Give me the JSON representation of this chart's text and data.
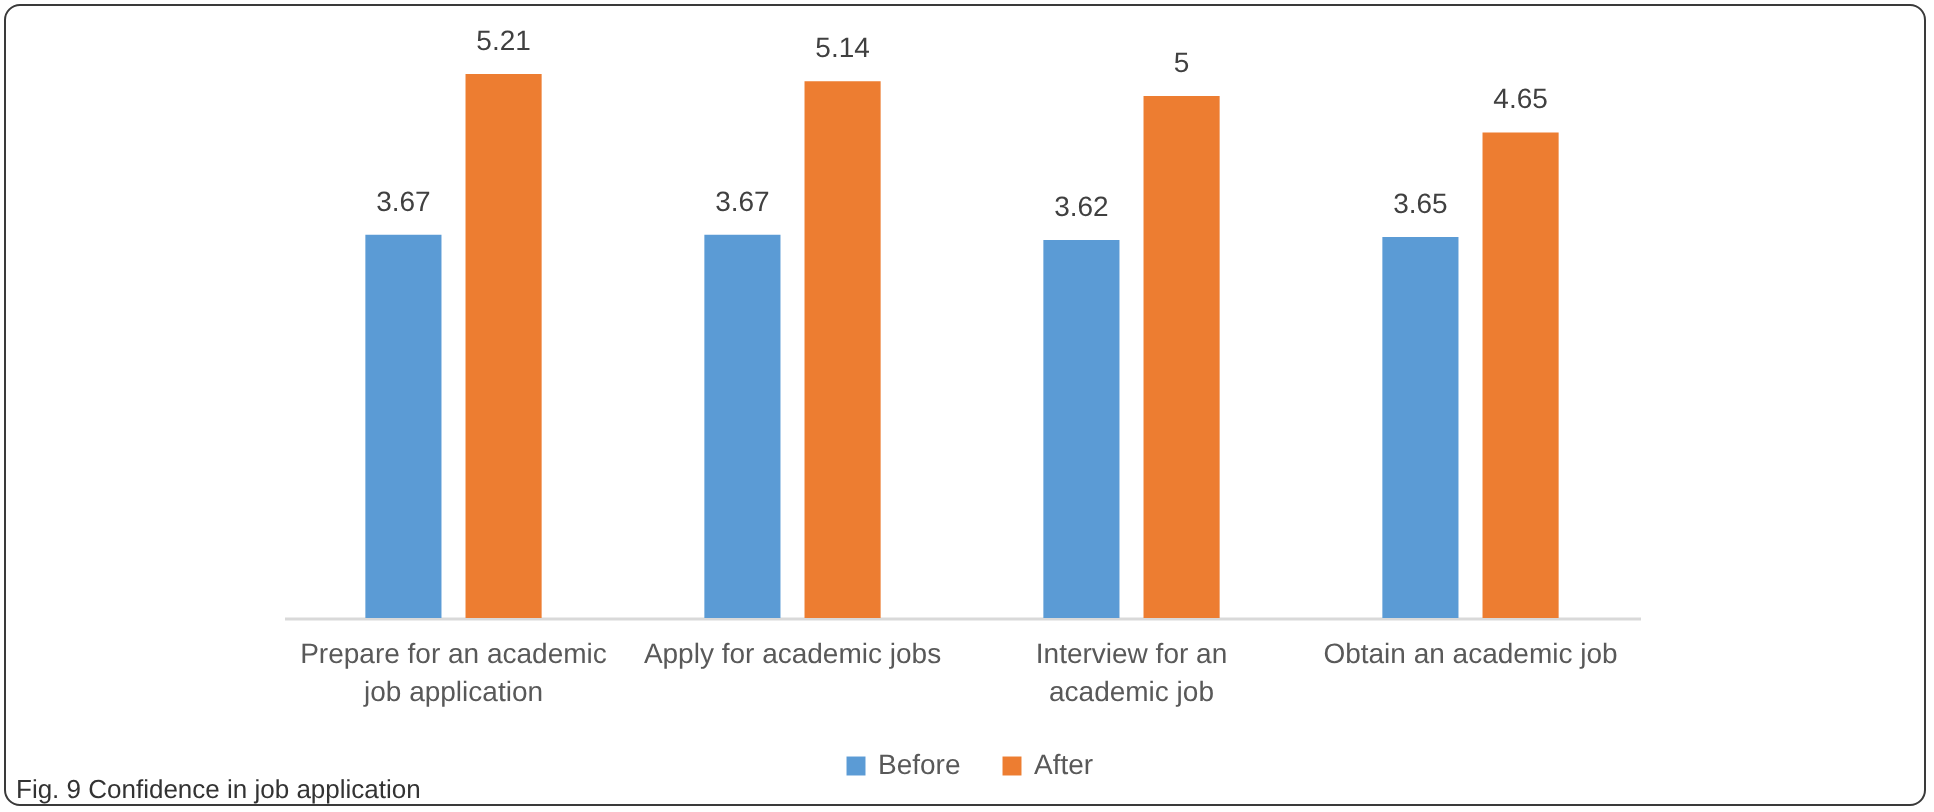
{
  "chart_data": {
    "type": "bar",
    "categories": [
      "Prepare for an academic job application",
      "Apply for academic jobs",
      "Interview for an academic job",
      "Obtain an academic job"
    ],
    "series": [
      {
        "name": "Before",
        "color": "#5b9bd5",
        "values": [
          3.67,
          3.67,
          3.62,
          3.65
        ]
      },
      {
        "name": "After",
        "color": "#ed7d31",
        "values": [
          5.21,
          5.14,
          5,
          4.65
        ]
      }
    ],
    "data_labels": true,
    "legend": "bottom",
    "grid": false,
    "annotations": [
      "Fig. 9 Confidence in job application"
    ]
  }
}
